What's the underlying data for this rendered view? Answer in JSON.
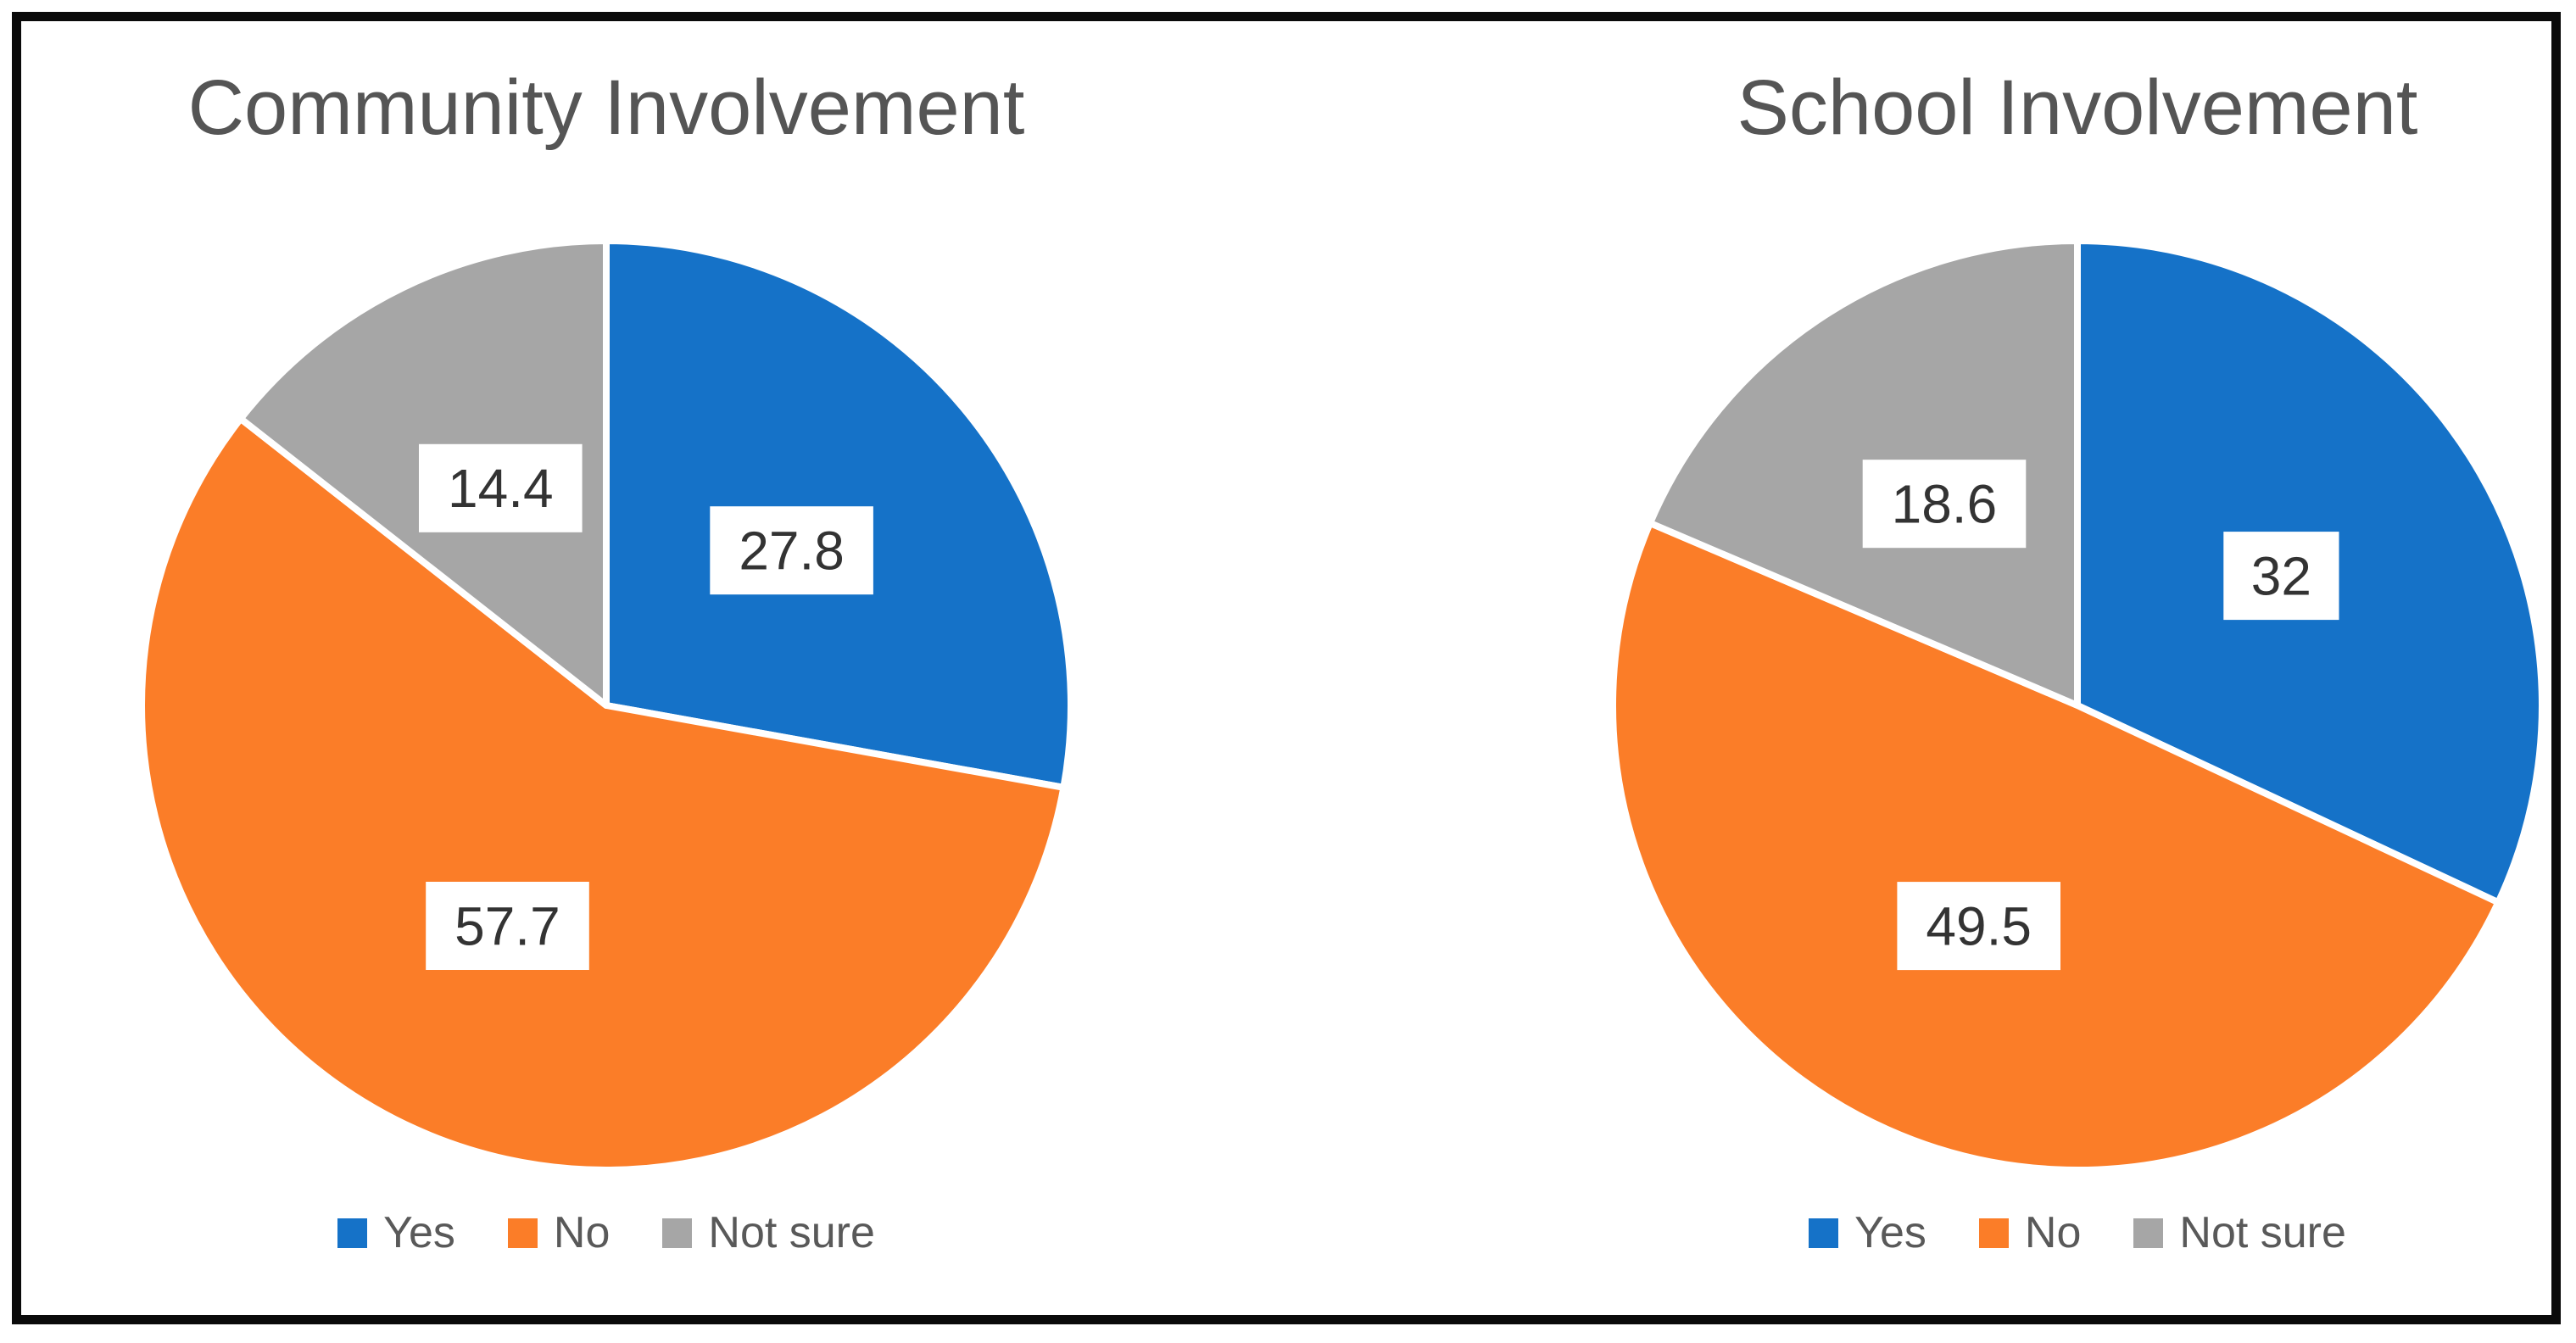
{
  "figure": {
    "background": "#ffffff",
    "frame_color": "#0a0a0a",
    "title_color": "#555555",
    "legend_text_color": "#595959",
    "data_label_text_color": "#333333",
    "data_label_box_color": "#ffffff",
    "slice_gap_color": "#ffffff"
  },
  "chart_data": [
    {
      "type": "pie",
      "title": "Community Involvement",
      "categories": [
        "Yes",
        "No",
        "Not sure"
      ],
      "values": [
        27.8,
        57.7,
        14.4
      ],
      "display_values": [
        "27.8",
        "57.7",
        "14.4"
      ],
      "colors": [
        "#1572C8",
        "#FB7D28",
        "#A6A6A6"
      ],
      "legend_position": "bottom",
      "start_angle_deg": 0,
      "direction": "clockwise",
      "data_labels": "values in white boxes inside slices"
    },
    {
      "type": "pie",
      "title": "School Involvement",
      "categories": [
        "Yes",
        "No",
        "Not sure"
      ],
      "values": [
        32,
        49.5,
        18.6
      ],
      "display_values": [
        "32",
        "49.5",
        "18.6"
      ],
      "colors": [
        "#1572C8",
        "#FB7D28",
        "#A6A6A6"
      ],
      "legend_position": "bottom",
      "start_angle_deg": 0,
      "direction": "clockwise",
      "data_labels": "values in white boxes inside slices"
    }
  ]
}
